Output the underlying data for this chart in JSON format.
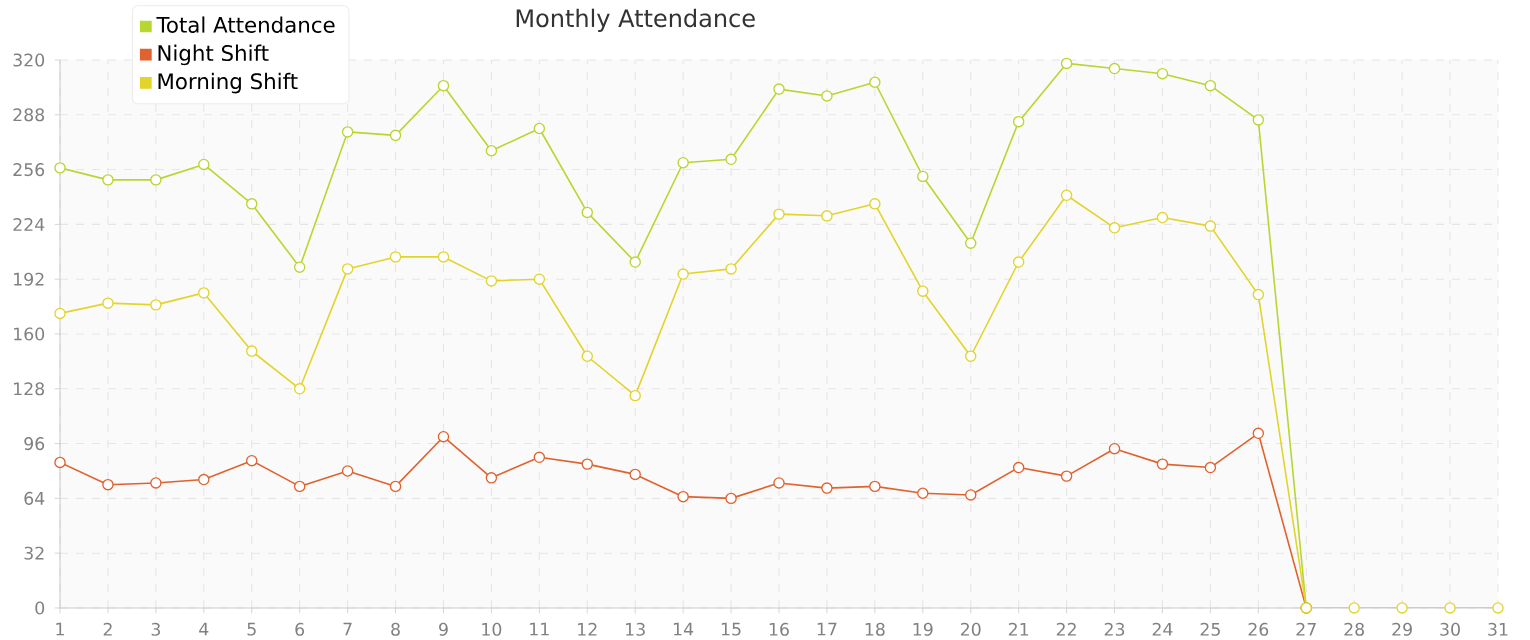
{
  "chart_data": {
    "type": "line",
    "title": "Monthly Attendance",
    "x": [
      1,
      2,
      3,
      4,
      5,
      6,
      7,
      8,
      9,
      10,
      11,
      12,
      13,
      14,
      15,
      16,
      17,
      18,
      19,
      20,
      21,
      22,
      23,
      24,
      25,
      26,
      27,
      28,
      29,
      30,
      31
    ],
    "series": [
      {
        "name": "Total Attendance",
        "color": "#b8d630",
        "values": [
          257,
          250,
          250,
          259,
          236,
          199,
          278,
          276,
          305,
          267,
          280,
          231,
          202,
          260,
          262,
          303,
          299,
          307,
          252,
          213,
          284,
          318,
          315,
          312,
          305,
          285,
          0,
          null,
          null,
          null,
          null
        ]
      },
      {
        "name": "Night Shift",
        "color": "#e0622e",
        "values": [
          85,
          72,
          73,
          75,
          86,
          71,
          80,
          71,
          100,
          76,
          88,
          84,
          78,
          65,
          64,
          73,
          70,
          71,
          67,
          66,
          82,
          77,
          93,
          84,
          82,
          102,
          0,
          null,
          null,
          null,
          null
        ]
      },
      {
        "name": "Morning Shift",
        "color": "#e2d42c",
        "values": [
          172,
          178,
          177,
          184,
          150,
          128,
          198,
          205,
          205,
          191,
          192,
          147,
          124,
          195,
          198,
          230,
          229,
          236,
          185,
          147,
          202,
          241,
          222,
          228,
          223,
          183,
          0,
          0,
          0,
          0,
          0
        ]
      }
    ],
    "xlim": [
      1,
      31
    ],
    "xticks": [
      1,
      2,
      3,
      4,
      5,
      6,
      7,
      8,
      9,
      10,
      11,
      12,
      13,
      14,
      15,
      16,
      17,
      18,
      19,
      20,
      21,
      22,
      23,
      24,
      25,
      26,
      27,
      28,
      29,
      30,
      31
    ],
    "ylim": [
      0,
      320
    ],
    "yticks": [
      0,
      32,
      64,
      96,
      128,
      160,
      192,
      224,
      256,
      288,
      320
    ],
    "grid": true,
    "legend": "top left",
    "marker": "circle",
    "line_style": "solid"
  }
}
